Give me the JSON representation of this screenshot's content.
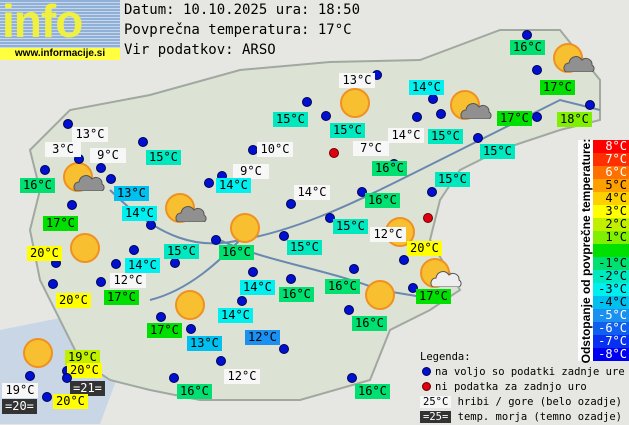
{
  "logo": {
    "text": "info",
    "url": "www.informacije.si"
  },
  "header": {
    "date_line": "Datum: 10.10.2025 ura: 18:50",
    "avg_line": "Povprečna temperatura: 17°C",
    "source_line": "Vir podatkov: ARSO",
    "average_temp": 17
  },
  "stations": [
    {
      "temp": "16°C",
      "kind": "valley",
      "value": 16
    },
    {
      "temp": "13°C",
      "kind": "mountain",
      "value": 13
    },
    {
      "temp": "15°C",
      "kind": "valley",
      "value": 15
    },
    {
      "temp": "15°C",
      "kind": "valley",
      "value": 15
    },
    {
      "temp": "14°C",
      "kind": "valley",
      "value": 14
    },
    {
      "temp": "14°C",
      "kind": "mountain",
      "value": 14
    },
    {
      "temp": "15°C",
      "kind": "valley",
      "value": 15
    },
    {
      "temp": "17°C",
      "kind": "valley",
      "value": 17
    },
    {
      "temp": "18°C",
      "kind": "valley",
      "value": 18
    },
    {
      "temp": "17°C",
      "kind": "valley",
      "value": 17
    },
    {
      "temp": "15°C",
      "kind": "valley",
      "value": 15
    },
    {
      "temp": "15°C",
      "kind": "valley",
      "value": 15
    },
    {
      "temp": "20°C",
      "kind": "valley",
      "value": 20
    },
    {
      "temp": "12°C",
      "kind": "mountain",
      "value": 12
    },
    {
      "temp": "17°C",
      "kind": "valley",
      "value": 17
    },
    {
      "temp": "10°C",
      "kind": "mountain",
      "value": 10
    },
    {
      "temp": "7°C",
      "kind": "mountain",
      "value": 7
    },
    {
      "temp": "16°C",
      "kind": "valley",
      "value": 16
    },
    {
      "temp": "9°C",
      "kind": "mountain",
      "value": 9
    },
    {
      "temp": "14°C",
      "kind": "valley",
      "value": 14
    },
    {
      "temp": "14°C",
      "kind": "mountain",
      "value": 14
    },
    {
      "temp": "16°C",
      "kind": "valley",
      "value": 16
    },
    {
      "temp": "15°C",
      "kind": "valley",
      "value": 15
    },
    {
      "temp": "15°C",
      "kind": "valley",
      "value": 15
    },
    {
      "temp": "16°C",
      "kind": "valley",
      "value": 16
    },
    {
      "temp": "13°C",
      "kind": "mountain",
      "value": 13
    },
    {
      "temp": "3°C",
      "kind": "mountain",
      "value": 3
    },
    {
      "temp": "9°C",
      "kind": "mountain",
      "value": 9
    },
    {
      "temp": "16°C",
      "kind": "valley",
      "value": 16
    },
    {
      "temp": "13°C",
      "kind": "valley",
      "value": 13
    },
    {
      "temp": "15°C",
      "kind": "valley",
      "value": 15
    },
    {
      "temp": "17°C",
      "kind": "valley",
      "value": 17
    },
    {
      "temp": "14°C",
      "kind": "valley",
      "value": 14
    },
    {
      "temp": "20°C",
      "kind": "valley",
      "value": 20
    },
    {
      "temp": "14°C",
      "kind": "valley",
      "value": 14
    },
    {
      "temp": "15°C",
      "kind": "valley",
      "value": 15
    },
    {
      "temp": "12°C",
      "kind": "mountain",
      "value": 12
    },
    {
      "temp": "20°C",
      "kind": "valley",
      "value": 20
    },
    {
      "temp": "17°C",
      "kind": "valley",
      "value": 17
    },
    {
      "temp": "14°C",
      "kind": "valley",
      "value": 14
    },
    {
      "temp": "16°C",
      "kind": "valley",
      "value": 16
    },
    {
      "temp": "14°C",
      "kind": "valley",
      "value": 14
    },
    {
      "temp": "17°C",
      "kind": "valley",
      "value": 17
    },
    {
      "temp": "13°C",
      "kind": "valley",
      "value": 13
    },
    {
      "temp": "12°C",
      "kind": "valley",
      "value": 12
    },
    {
      "temp": "16°C",
      "kind": "valley",
      "value": 16
    },
    {
      "temp": "16°C",
      "kind": "valley",
      "value": 16
    },
    {
      "temp": "19°C",
      "kind": "valley",
      "value": 19
    },
    {
      "temp": "20°C",
      "kind": "valley",
      "value": 20
    },
    {
      "temp": "=21=",
      "kind": "sea",
      "value": 21
    },
    {
      "temp": "19°C",
      "kind": "mountain",
      "value": 19
    },
    {
      "temp": "=20=",
      "kind": "sea",
      "value": 20
    },
    {
      "temp": "20°C",
      "kind": "valley",
      "value": 20
    },
    {
      "temp": "16°C",
      "kind": "valley",
      "value": 16
    },
    {
      "temp": "12°C",
      "kind": "mountain",
      "value": 12
    },
    {
      "temp": "16°C",
      "kind": "valley",
      "value": 16
    }
  ],
  "weather_icons": [
    "sun-icon",
    "partly-cloudy-icon",
    "partly-cloudy-icon",
    "partly-cloudy-icon",
    "partly-cloudy-icon",
    "sun-icon",
    "sun-icon",
    "sun-icon",
    "sun-icon",
    "sun-icon",
    "sun-icon",
    "partly-cloudy-icon"
  ],
  "scale": {
    "title": "Odstopanje od povprečne temperature:",
    "steps": [
      {
        "label": "8°C",
        "color": "#ff0000"
      },
      {
        "label": "7°C",
        "color": "#ff3000"
      },
      {
        "label": "6°C",
        "color": "#ff7000"
      },
      {
        "label": "5°C",
        "color": "#ffa000"
      },
      {
        "label": "4°C",
        "color": "#ffd000"
      },
      {
        "label": "3°C",
        "color": "#ffff00"
      },
      {
        "label": "2°C",
        "color": "#c0f000"
      },
      {
        "label": "1°C",
        "color": "#80f000"
      },
      {
        "label": "",
        "color": "#00e000"
      },
      {
        "label": "-1°C",
        "color": "#00e070"
      },
      {
        "label": "-2°C",
        "color": "#00e8c0"
      },
      {
        "label": "-3°C",
        "color": "#00f0f0"
      },
      {
        "label": "-4°C",
        "color": "#00c0f0"
      },
      {
        "label": "-5°C",
        "color": "#1a90f0"
      },
      {
        "label": "-6°C",
        "color": "#1060f0"
      },
      {
        "label": "-7°C",
        "color": "#0830f0"
      },
      {
        "label": "-8°C",
        "color": "#0000f0"
      }
    ]
  },
  "legend": {
    "title": "Legenda:",
    "blue_dot": "na voljo so podatki zadnje ure",
    "red_dot": "ni podatka za zadnjo uro",
    "mountain_sample": "25°C",
    "mountain_text": "hribi / gore (belo ozadje)",
    "sea_sample": "=25=",
    "sea_text": "temp. morja (temno ozadje)"
  }
}
